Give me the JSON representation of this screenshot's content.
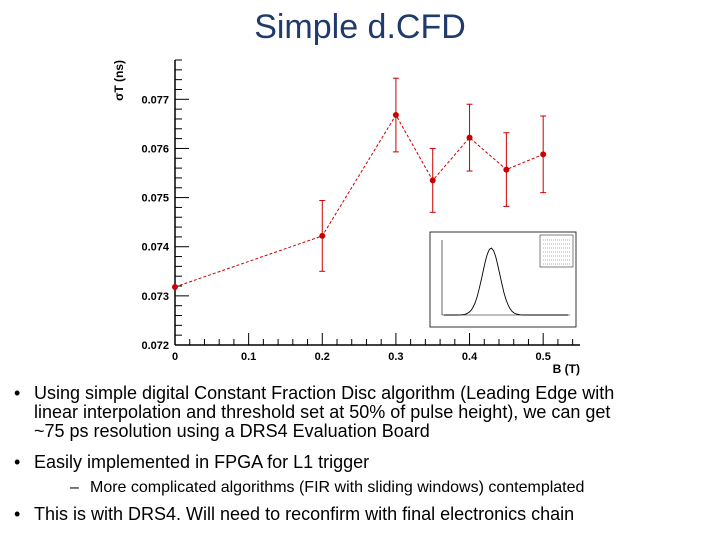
{
  "slide": {
    "title": "Simple d.CFD"
  },
  "chart_data": {
    "type": "scatter",
    "title": "",
    "xlabel": "B (T)",
    "ylabel": "σT (ns)",
    "xlim": [
      0,
      0.55
    ],
    "ylim": [
      0.072,
      0.0778
    ],
    "x_ticks": [
      "0",
      "0.1",
      "0.2",
      "0.3",
      "0.4",
      "0.5"
    ],
    "y_ticks": [
      "0.072",
      "0.073",
      "0.074",
      "0.075",
      "0.076",
      "0.077"
    ],
    "series": [
      {
        "color": "#cc0000",
        "points": [
          {
            "x": 0.0,
            "y": 0.07318,
            "err": 0.0
          },
          {
            "x": 0.2,
            "y": 0.07422,
            "err": 0.00072
          },
          {
            "x": 0.3,
            "y": 0.07668,
            "err": 0.00075
          },
          {
            "x": 0.35,
            "y": 0.07535,
            "err": 0.00065
          },
          {
            "x": 0.4,
            "y": 0.07622,
            "err": 0.00068
          },
          {
            "x": 0.45,
            "y": 0.07557,
            "err": 0.00075
          },
          {
            "x": 0.5,
            "y": 0.07588,
            "err": 0.00078
          }
        ]
      }
    ],
    "inset": {
      "type": "histogram",
      "description_visible": false
    }
  },
  "bullets": [
    {
      "text1": "Using simple digital Constant Fraction Disc algorithm (Leading Edge with",
      "text2": "linear interpolation and threshold set at 50% of pulse height), we can get",
      "text3": "~75 ps resolution using a DRS4 Evaluation Board"
    },
    {
      "text1": "Easily implemented in FPGA for L1 trigger"
    },
    {
      "text1": "More complicated algorithms (FIR with sliding windows) contemplated"
    },
    {
      "text1": "This is with DRS4.  Will need to reconfirm with final electronics chain"
    }
  ]
}
